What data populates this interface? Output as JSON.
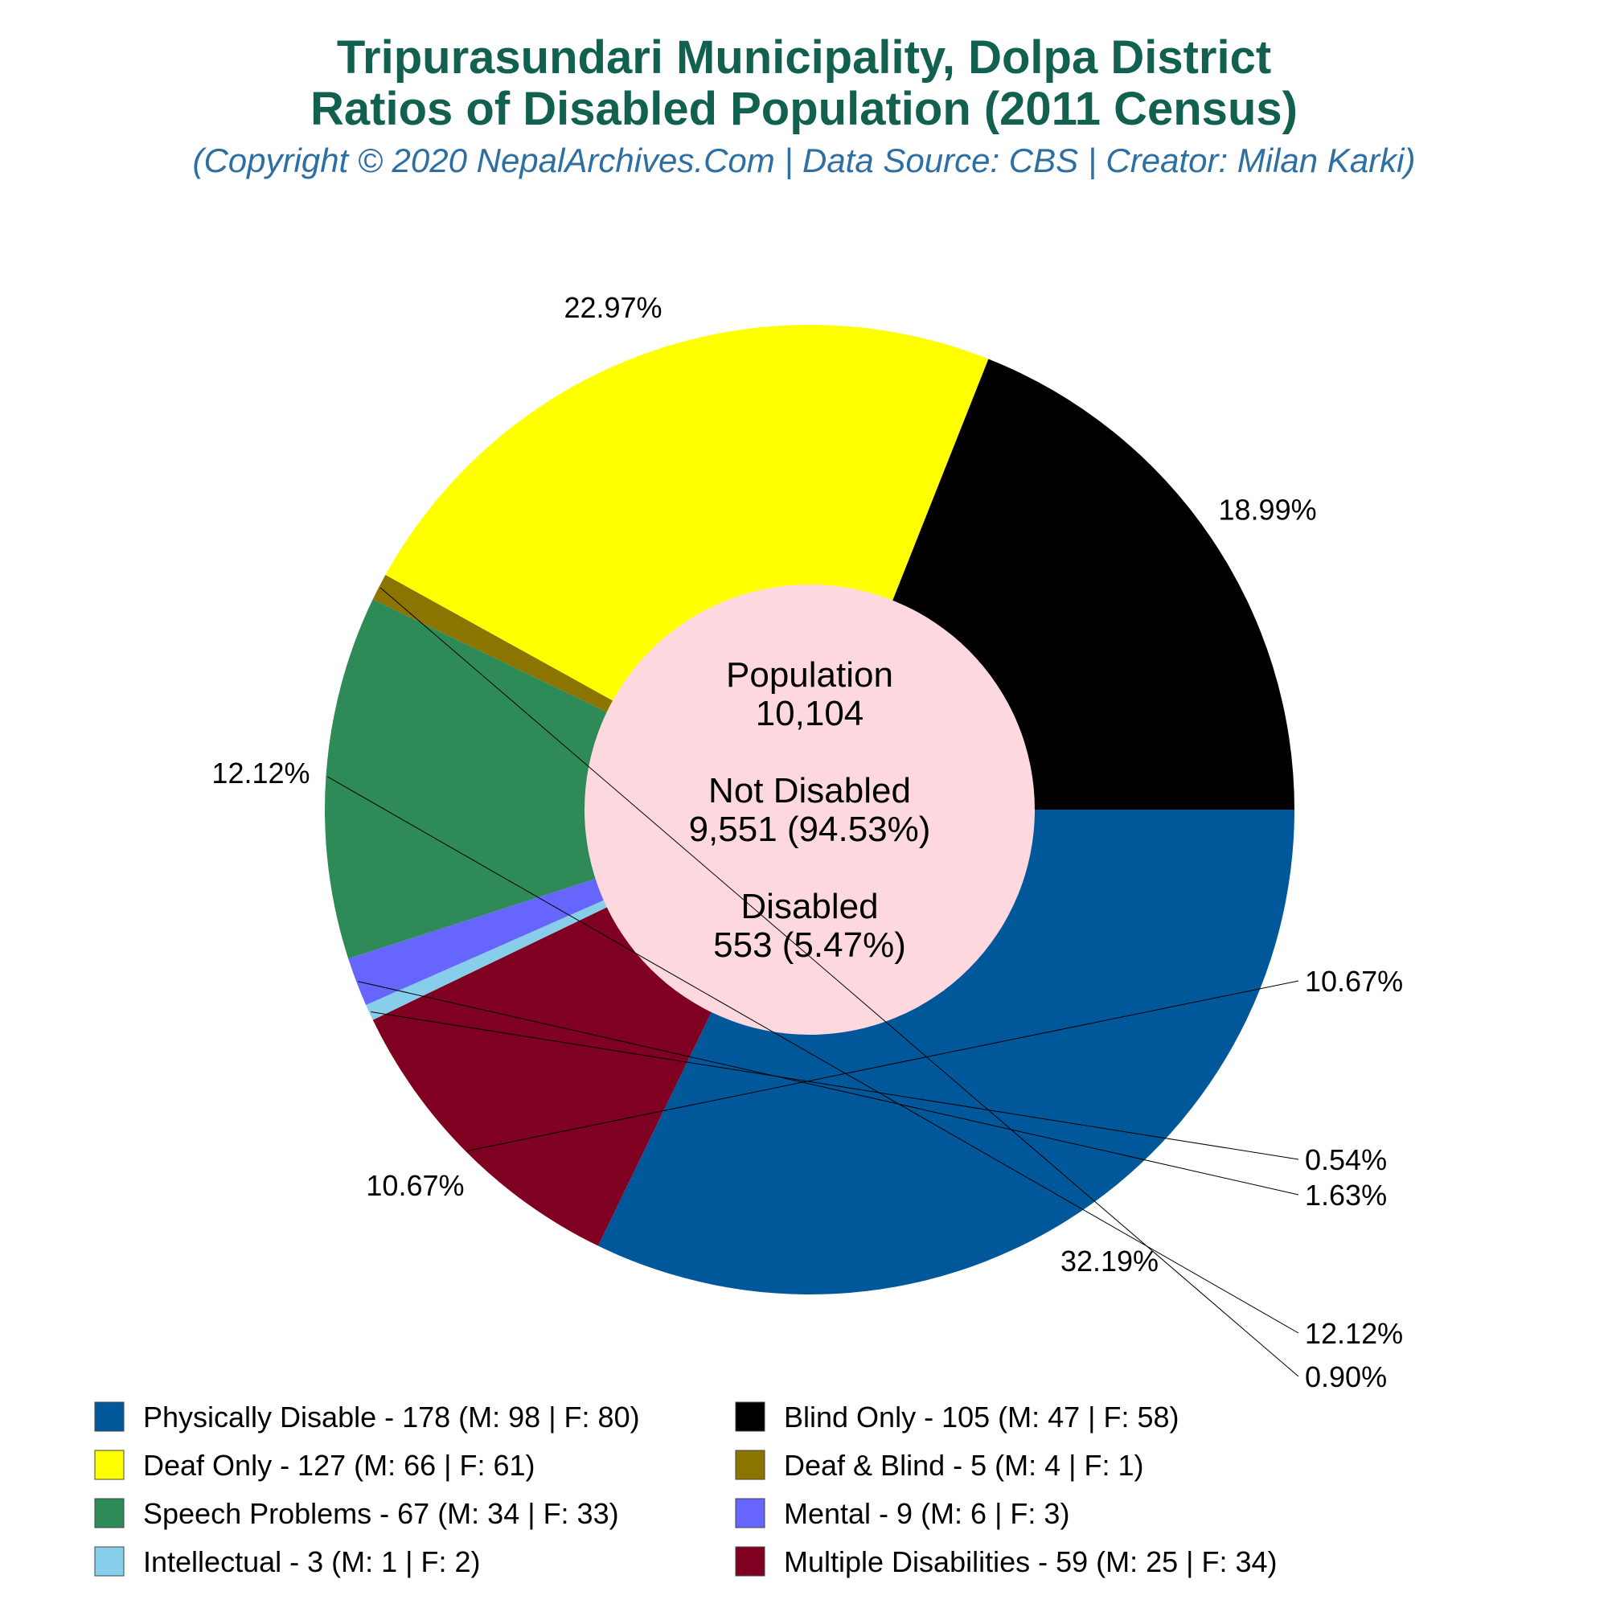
{
  "chart_data": {
    "type": "pie",
    "title": [
      "Tripurasundari Municipality, Dolpa District",
      "Ratios of Disabled Population (2011 Census)"
    ],
    "subtitle": "(Copyright © 2020 NepalArchives.Com | Data Source: CBS | Creator: Milan Karki)",
    "slices": [
      {
        "label": "Physically Disable",
        "value": 178,
        "male": 98,
        "female": 80,
        "percent_label": "32.19%",
        "color": "#00589a",
        "legend_text": "Physically Disable - 178 (M: 98 | F: 80)"
      },
      {
        "label": "Multiple Disabilities",
        "value": 59,
        "male": 25,
        "female": 34,
        "percent_label": "10.67%",
        "color": "#7f0020",
        "legend_text": "Multiple Disabilities - 59 (M: 25 | F: 34)"
      },
      {
        "label": "Intellectual",
        "value": 3,
        "male": 1,
        "female": 2,
        "percent_label": "0.54%",
        "color": "#87ceeb",
        "legend_text": "Intellectual - 3 (M: 1 | F: 2)"
      },
      {
        "label": "Mental",
        "value": 9,
        "male": 6,
        "female": 3,
        "percent_label": "1.63%",
        "color": "#6666ff",
        "legend_text": "Mental - 9 (M: 6 | F: 3)"
      },
      {
        "label": "Speech Problems",
        "value": 67,
        "male": 34,
        "female": 33,
        "percent_label": "12.12%",
        "color": "#2e8b57",
        "legend_text": "Speech Problems - 67 (M: 34 | F: 33)"
      },
      {
        "label": "Deaf & Blind",
        "value": 5,
        "male": 4,
        "female": 1,
        "percent_label": "0.90%",
        "color": "#8b7500",
        "legend_text": "Deaf & Blind - 5 (M: 4 | F: 1)"
      },
      {
        "label": "Deaf Only",
        "value": 127,
        "male": 66,
        "female": 61,
        "percent_label": "22.97%",
        "color": "#ffff00",
        "legend_text": "Deaf Only - 127 (M: 66 | F: 61)"
      },
      {
        "label": "Blind Only",
        "value": 105,
        "male": 47,
        "female": 58,
        "percent_label": "18.99%",
        "color": "#000000",
        "legend_text": "Blind Only - 105 (M: 47 | F: 58)"
      }
    ],
    "legend_order": [
      "Physically Disable",
      "Blind Only",
      "Deaf Only",
      "Deaf & Blind",
      "Speech Problems",
      "Mental",
      "Intellectual",
      "Multiple Disabilities"
    ],
    "center": {
      "color": "#fdd8df",
      "lines": [
        "Population",
        "10,104",
        "",
        "Not Disabled",
        "9,551 (94.53%)",
        "",
        "Disabled",
        "553 (5.47%)"
      ]
    },
    "legend_placement": "bottom"
  }
}
